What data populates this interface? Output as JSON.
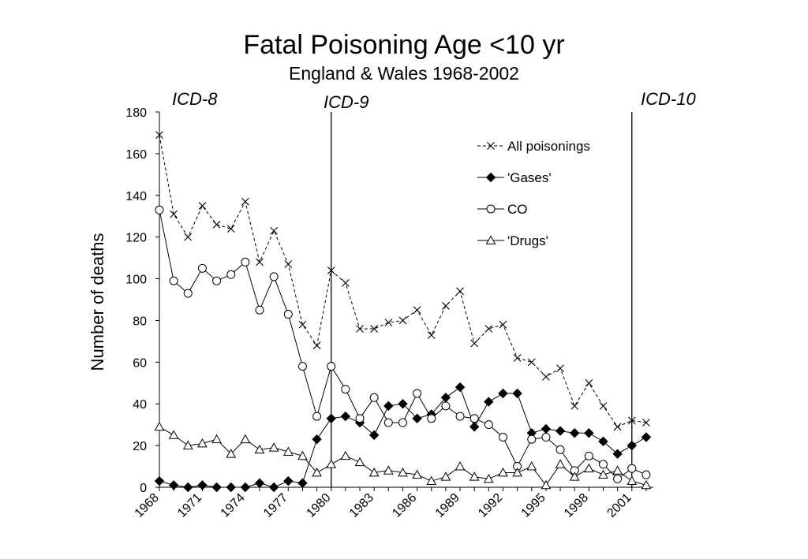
{
  "chart_data": {
    "type": "line",
    "title": "Fatal Poisoning Age <10 yr",
    "subtitle": "England & Wales 1968-2002",
    "ylabel": "Number of deaths",
    "xlabel": "",
    "x": [
      1968,
      1969,
      1970,
      1971,
      1972,
      1973,
      1974,
      1975,
      1976,
      1977,
      1978,
      1979,
      1980,
      1981,
      1982,
      1983,
      1984,
      1985,
      1986,
      1987,
      1988,
      1989,
      1990,
      1991,
      1992,
      1993,
      1994,
      1995,
      1996,
      1997,
      1998,
      1999,
      2000,
      2001,
      2002
    ],
    "xlim": [
      1968,
      2002.5
    ],
    "ylim": [
      0,
      180
    ],
    "yticks": [
      "0",
      "20",
      "40",
      "60",
      "80",
      "100",
      "120",
      "140",
      "160",
      "180"
    ],
    "xticks": [
      "1968",
      "1971",
      "1974",
      "1977",
      "1980",
      "1983",
      "1986",
      "1989",
      "1992",
      "1995",
      "1998",
      "2001"
    ],
    "series": [
      {
        "name": "All poisonings",
        "marker": "x",
        "values": [
          169,
          131,
          120,
          135,
          126,
          124,
          137,
          108,
          123,
          107,
          78,
          68,
          104,
          98,
          76,
          76,
          79,
          80,
          85,
          73,
          87,
          94,
          69,
          76,
          78,
          62,
          60,
          53,
          57,
          39,
          50,
          39,
          29,
          32,
          31
        ]
      },
      {
        "name": "'Gases'",
        "marker": "diamond",
        "values": [
          3,
          1,
          0,
          1,
          0,
          0,
          0,
          2,
          0,
          3,
          2,
          23,
          33,
          34,
          31,
          25,
          39,
          40,
          33,
          35,
          43,
          48,
          29,
          41,
          45,
          45,
          26,
          28,
          27,
          26,
          26,
          22,
          16,
          20,
          24
        ]
      },
      {
        "name": "CO",
        "marker": "circle",
        "values": [
          133,
          99,
          93,
          105,
          99,
          102,
          108,
          85,
          101,
          83,
          58,
          34,
          58,
          47,
          33,
          43,
          31,
          31,
          45,
          33,
          39,
          34,
          33,
          30,
          24,
          10,
          23,
          24,
          18,
          8,
          15,
          11,
          4,
          9,
          6
        ]
      },
      {
        "name": "'Drugs'",
        "marker": "triangle",
        "values": [
          29,
          25,
          20,
          21,
          23,
          16,
          23,
          18,
          19,
          17,
          15,
          7,
          11,
          15,
          12,
          7,
          8,
          7,
          6,
          3,
          5,
          10,
          5,
          4,
          7,
          7,
          10,
          1,
          11,
          5,
          9,
          6,
          8,
          3,
          1
        ]
      }
    ],
    "vlines": [
      {
        "x": 1980,
        "label": "ICD-9"
      },
      {
        "x": 2001,
        "label": "ICD-10"
      }
    ],
    "annotations": [
      {
        "label": "ICD-8"
      }
    ],
    "legend_position": "top-right",
    "grid": false
  }
}
